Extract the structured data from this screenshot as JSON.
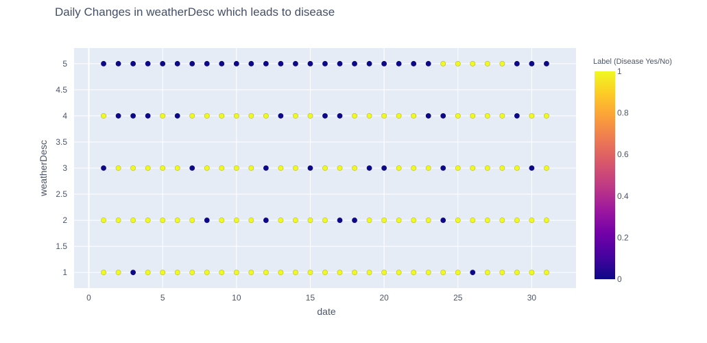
{
  "chart_data": {
    "type": "scatter",
    "title": "Daily Changes in weatherDesc which leads to disease",
    "xlabel": "date",
    "ylabel": "weatherDesc",
    "xlim": [
      -1,
      33
    ],
    "ylim": [
      0.7,
      5.3
    ],
    "x_ticks": [
      0,
      5,
      10,
      15,
      20,
      25,
      30
    ],
    "x_tick_labels": [
      "0",
      "5",
      "10",
      "15",
      "20",
      "25",
      "30"
    ],
    "y_ticks": [
      1,
      1.5,
      2,
      2.5,
      3,
      3.5,
      4,
      4.5,
      5
    ],
    "y_tick_labels": [
      "1",
      "1.5",
      "2",
      "2.5",
      "3",
      "3.5",
      "4",
      "4.5",
      "5"
    ],
    "grid": true,
    "color_scale": {
      "title": "Label (Disease Yes/No)",
      "range": [
        0,
        1
      ],
      "ticks": [
        0,
        0.2,
        0.4,
        0.6,
        0.8,
        1
      ],
      "tick_labels": [
        "0",
        "0.2",
        "0.4",
        "0.6",
        "0.8",
        "1"
      ],
      "palette": [
        "#0d0887",
        "#46039f",
        "#7201a8",
        "#9c179e",
        "#bd3786",
        "#d8576b",
        "#ed7953",
        "#fb9f3a",
        "#fdca26",
        "#f0f921"
      ]
    },
    "x": [
      1,
      2,
      3,
      4,
      5,
      6,
      7,
      8,
      9,
      10,
      11,
      12,
      13,
      14,
      15,
      16,
      17,
      18,
      19,
      20,
      21,
      22,
      23,
      24,
      25,
      26,
      27,
      28,
      29,
      30,
      31
    ],
    "series": [
      {
        "y": 5,
        "labels": [
          0,
          0,
          0,
          0,
          0,
          0,
          0,
          0,
          0,
          0,
          0,
          0,
          0,
          0,
          0,
          0,
          0,
          0,
          0,
          0,
          0,
          0,
          0,
          1,
          1,
          1,
          1,
          1,
          0,
          0,
          0
        ]
      },
      {
        "y": 4,
        "labels": [
          1,
          0,
          0,
          0,
          1,
          0,
          1,
          1,
          1,
          1,
          1,
          1,
          0,
          1,
          1,
          0,
          0,
          1,
          1,
          1,
          1,
          1,
          0,
          0,
          1,
          1,
          1,
          1,
          0,
          1,
          1
        ]
      },
      {
        "y": 3,
        "labels": [
          0,
          1,
          1,
          1,
          1,
          1,
          0,
          1,
          1,
          1,
          1,
          0,
          1,
          1,
          0,
          1,
          1,
          1,
          0,
          0,
          1,
          1,
          1,
          0,
          1,
          1,
          1,
          1,
          1,
          0,
          1
        ]
      },
      {
        "y": 2,
        "labels": [
          1,
          1,
          1,
          1,
          1,
          1,
          1,
          0,
          1,
          1,
          1,
          0,
          1,
          1,
          1,
          1,
          0,
          0,
          1,
          1,
          1,
          1,
          1,
          0,
          1,
          1,
          1,
          1,
          1,
          1,
          1
        ]
      },
      {
        "y": 1,
        "labels": [
          1,
          1,
          0,
          1,
          1,
          1,
          1,
          1,
          1,
          1,
          1,
          1,
          1,
          1,
          1,
          1,
          1,
          1,
          1,
          1,
          1,
          1,
          1,
          1,
          1,
          0,
          1,
          1,
          1,
          1,
          1
        ]
      }
    ]
  }
}
